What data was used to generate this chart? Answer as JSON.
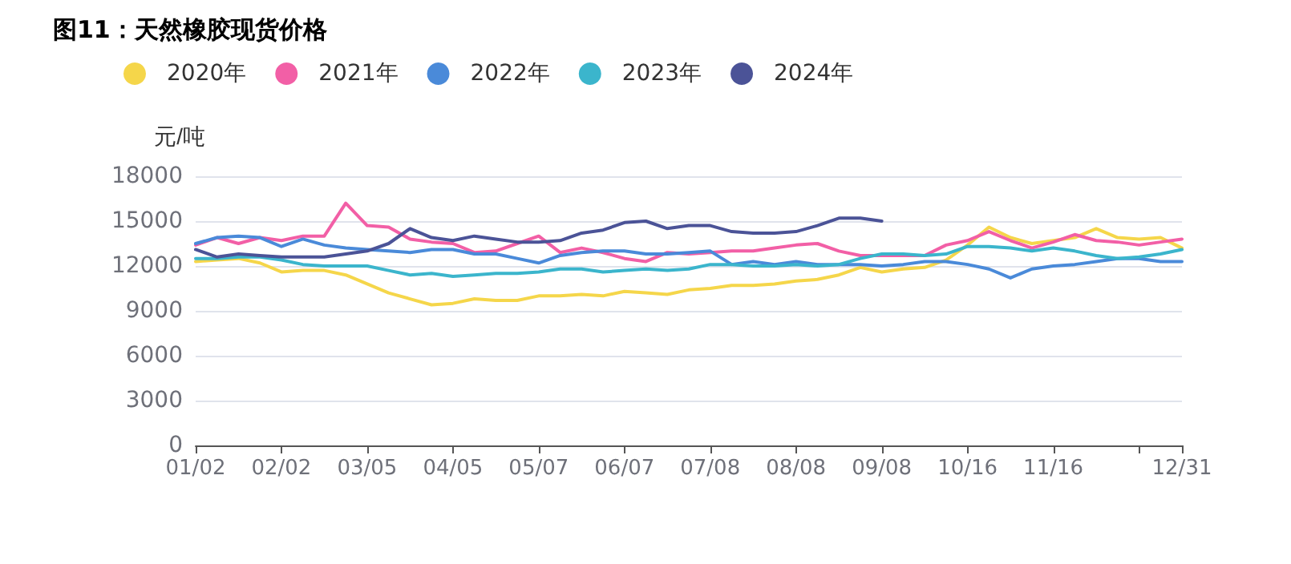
{
  "chart_data": {
    "type": "line",
    "title": "图11：天然橡胶现货价格",
    "ylabel": "元/吨",
    "categories": [
      "01/02",
      null,
      null,
      null,
      "02/02",
      null,
      null,
      null,
      "03/05",
      null,
      null,
      null,
      "04/05",
      null,
      null,
      null,
      "05/07",
      null,
      null,
      null,
      "06/07",
      null,
      null,
      null,
      "07/08",
      null,
      null,
      null,
      "08/08",
      null,
      null,
      null,
      "09/08",
      null,
      null,
      null,
      "10/16",
      null,
      null,
      null,
      "11/16",
      null,
      null,
      null,
      null,
      null,
      "12/31"
    ],
    "series": [
      {
        "name": "2020年",
        "color": "#f5d64a",
        "values": [
          12300,
          12400,
          12500,
          12200,
          11600,
          11700,
          11700,
          11400,
          10800,
          10200,
          9800,
          9400,
          9500,
          9800,
          9700,
          9700,
          10000,
          10000,
          10100,
          10000,
          10300,
          10200,
          10100,
          10400,
          10500,
          10700,
          10700,
          10800,
          11000,
          11100,
          11400,
          11900,
          11600,
          11800,
          11900,
          12400,
          13400,
          14600,
          13900,
          13500,
          13700,
          13900,
          14500,
          13900,
          13800,
          13900,
          13200
        ]
      },
      {
        "name": "2021年",
        "color": "#f25fa6",
        "values": [
          13400,
          13900,
          13500,
          13900,
          13700,
          14000,
          14000,
          16200,
          14700,
          14600,
          13800,
          13600,
          13500,
          12900,
          13000,
          13500,
          14000,
          12900,
          13200,
          12900,
          12500,
          12300,
          12900,
          12800,
          12900,
          13000,
          13000,
          13200,
          13400,
          13500,
          13000,
          12700,
          12700,
          12700,
          12700,
          13400,
          13700,
          14300,
          13700,
          13200,
          13600,
          14100,
          13700,
          13600,
          13400,
          13600,
          13800
        ]
      },
      {
        "name": "2022年",
        "color": "#4a8ad9",
        "values": [
          13500,
          13900,
          14000,
          13900,
          13300,
          13800,
          13400,
          13200,
          13100,
          13000,
          12900,
          13100,
          13100,
          12800,
          12800,
          12500,
          12200,
          12700,
          12900,
          13000,
          13000,
          12800,
          12800,
          12900,
          13000,
          12100,
          12300,
          12100,
          12300,
          12100,
          12100,
          12100,
          12000,
          12100,
          12300,
          12300,
          12100,
          11800,
          11200,
          11800,
          12000,
          12100,
          12300,
          12500,
          12500,
          12300,
          12300
        ]
      },
      {
        "name": "2023年",
        "color": "#3bb5cc",
        "values": [
          12500,
          12500,
          12600,
          12600,
          12400,
          12100,
          12000,
          12000,
          12000,
          11700,
          11400,
          11500,
          11300,
          11400,
          11500,
          11500,
          11600,
          11800,
          11800,
          11600,
          11700,
          11800,
          11700,
          11800,
          12100,
          12100,
          12000,
          12000,
          12100,
          12000,
          12100,
          12500,
          12800,
          12800,
          12700,
          12800,
          13300,
          13300,
          13200,
          13000,
          13200,
          13000,
          12700,
          12500,
          12600,
          12800,
          13100
        ]
      },
      {
        "name": "2024年",
        "color": "#4b5397",
        "values": [
          13100,
          12600,
          12800,
          12700,
          12600,
          12600,
          12600,
          12800,
          13000,
          13500,
          14500,
          13900,
          13700,
          14000,
          13800,
          13600,
          13600,
          13700,
          14200,
          14400,
          14900,
          15000,
          14500,
          14700,
          14700,
          14300,
          14200,
          14200,
          14300,
          14700,
          15200,
          15200,
          15000,
          null,
          null,
          null,
          null,
          null,
          null,
          null,
          null,
          null,
          null,
          null,
          null,
          null,
          null
        ]
      }
    ],
    "ylim": [
      0,
      18000
    ],
    "yticks": [
      0,
      3000,
      6000,
      9000,
      12000,
      15000,
      18000
    ],
    "grid": "y",
    "legend": "top",
    "marker": "none",
    "line_style": "solid"
  }
}
